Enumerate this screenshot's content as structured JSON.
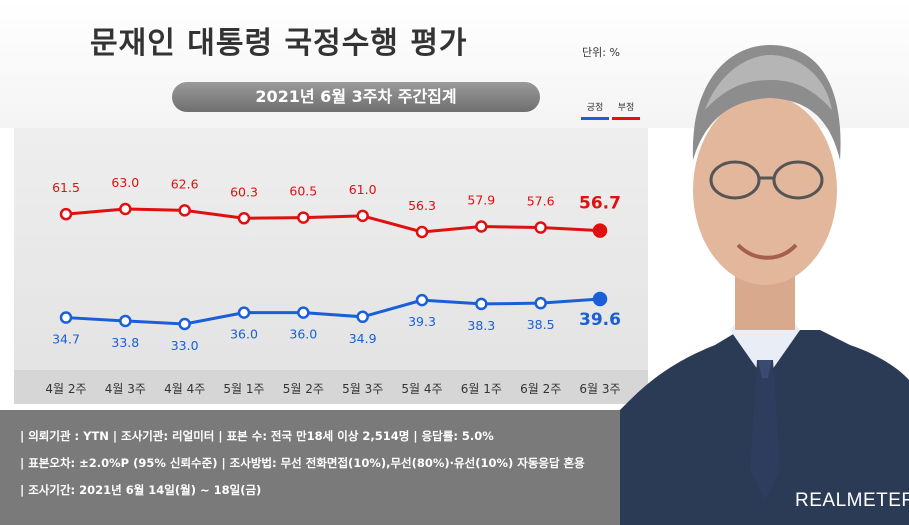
{
  "header": {
    "title": "문재인 대통령 국정수행 평가",
    "unit": "단위: %",
    "subtitle": "2021년 6월 3주차 주간집계"
  },
  "legend": [
    {
      "label": "긍정",
      "color": "#1a5fd6"
    },
    {
      "label": "부정",
      "color": "#e01010"
    }
  ],
  "chart_data": {
    "type": "line",
    "categories": [
      "4월 2주",
      "4월 3주",
      "4월 4주",
      "5월 1주",
      "5월 2주",
      "5월 3주",
      "5월 4주",
      "6월 1주",
      "6월 2주",
      "6월 3주"
    ],
    "series": [
      {
        "name": "부정",
        "color": "#e01010",
        "values": [
          61.5,
          63.0,
          62.6,
          60.3,
          60.5,
          61.0,
          56.3,
          57.9,
          57.6,
          56.7
        ],
        "labels": [
          "61.5",
          "63.0",
          "62.6",
          "60.3",
          "60.5",
          "61.0",
          "56.3",
          "57.9",
          "57.6",
          "56.7"
        ]
      },
      {
        "name": "긍정",
        "color": "#1a5fd6",
        "values": [
          34.7,
          33.8,
          33.0,
          36.0,
          36.0,
          34.9,
          39.3,
          38.3,
          38.5,
          39.6
        ],
        "labels": [
          "34.7",
          "33.8",
          "33.0",
          "36.0",
          "36.0",
          "34.9",
          "39.3",
          "38.3",
          "38.5",
          "39.6"
        ]
      }
    ]
  },
  "footer": {
    "line1": "| 의뢰기관 : YTN  |  조사기관: 리얼미터 |  표본 수: 전국 만18세 이상 2,514명  |  응답률: 5.0%",
    "line2": "| 표본오차: ±2.0%P (95% 신뢰수준)  |  조사방법: 무선 전화면접(10%),무선(80%)·유선(10%) 자동응답 혼용",
    "line3": "| 조사기간: 2021년 6월 14일(월) ~ 18일(금)",
    "brand": "REALMETER"
  }
}
